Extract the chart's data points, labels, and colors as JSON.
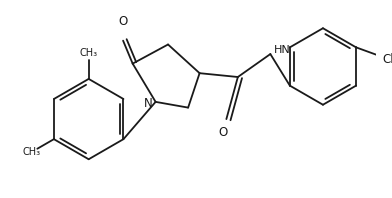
{
  "background_color": "#ffffff",
  "line_color": "#1a1a1a",
  "line_width": 1.3,
  "font_size": 8.5,
  "figsize": [
    3.92,
    1.98
  ],
  "dpi": 100,
  "xlim": [
    0,
    392
  ],
  "ylim": [
    0,
    198
  ]
}
